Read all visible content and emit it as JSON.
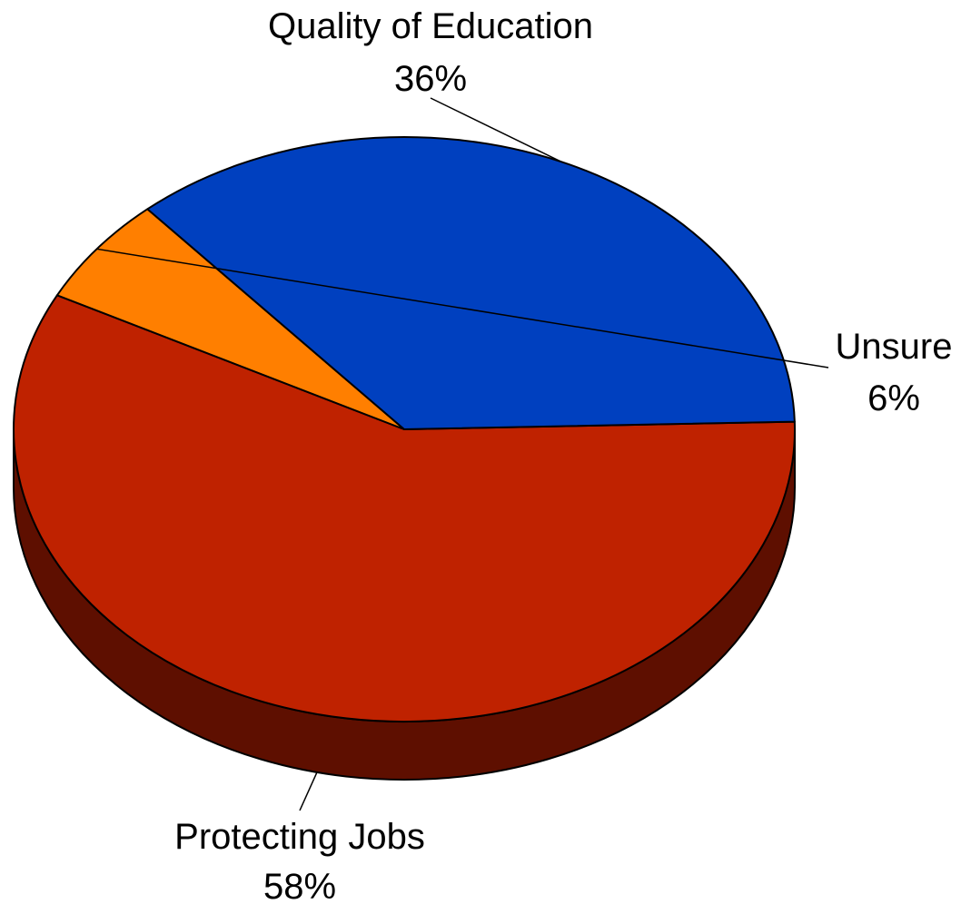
{
  "chart_data": {
    "type": "pie",
    "title": "",
    "slices": [
      {
        "label": "Protecting Jobs",
        "value": 58,
        "value_label": "58%",
        "color": "#BF2200",
        "side_color": "#5E0F00"
      },
      {
        "label": "Unsure",
        "value": 6,
        "value_label": "6%",
        "color": "#FF7F00"
      },
      {
        "label": "Quality of Education",
        "value": 36,
        "value_label": "36%",
        "color": "#0040BF"
      }
    ],
    "legend": "none",
    "style": "3d-tilted"
  }
}
